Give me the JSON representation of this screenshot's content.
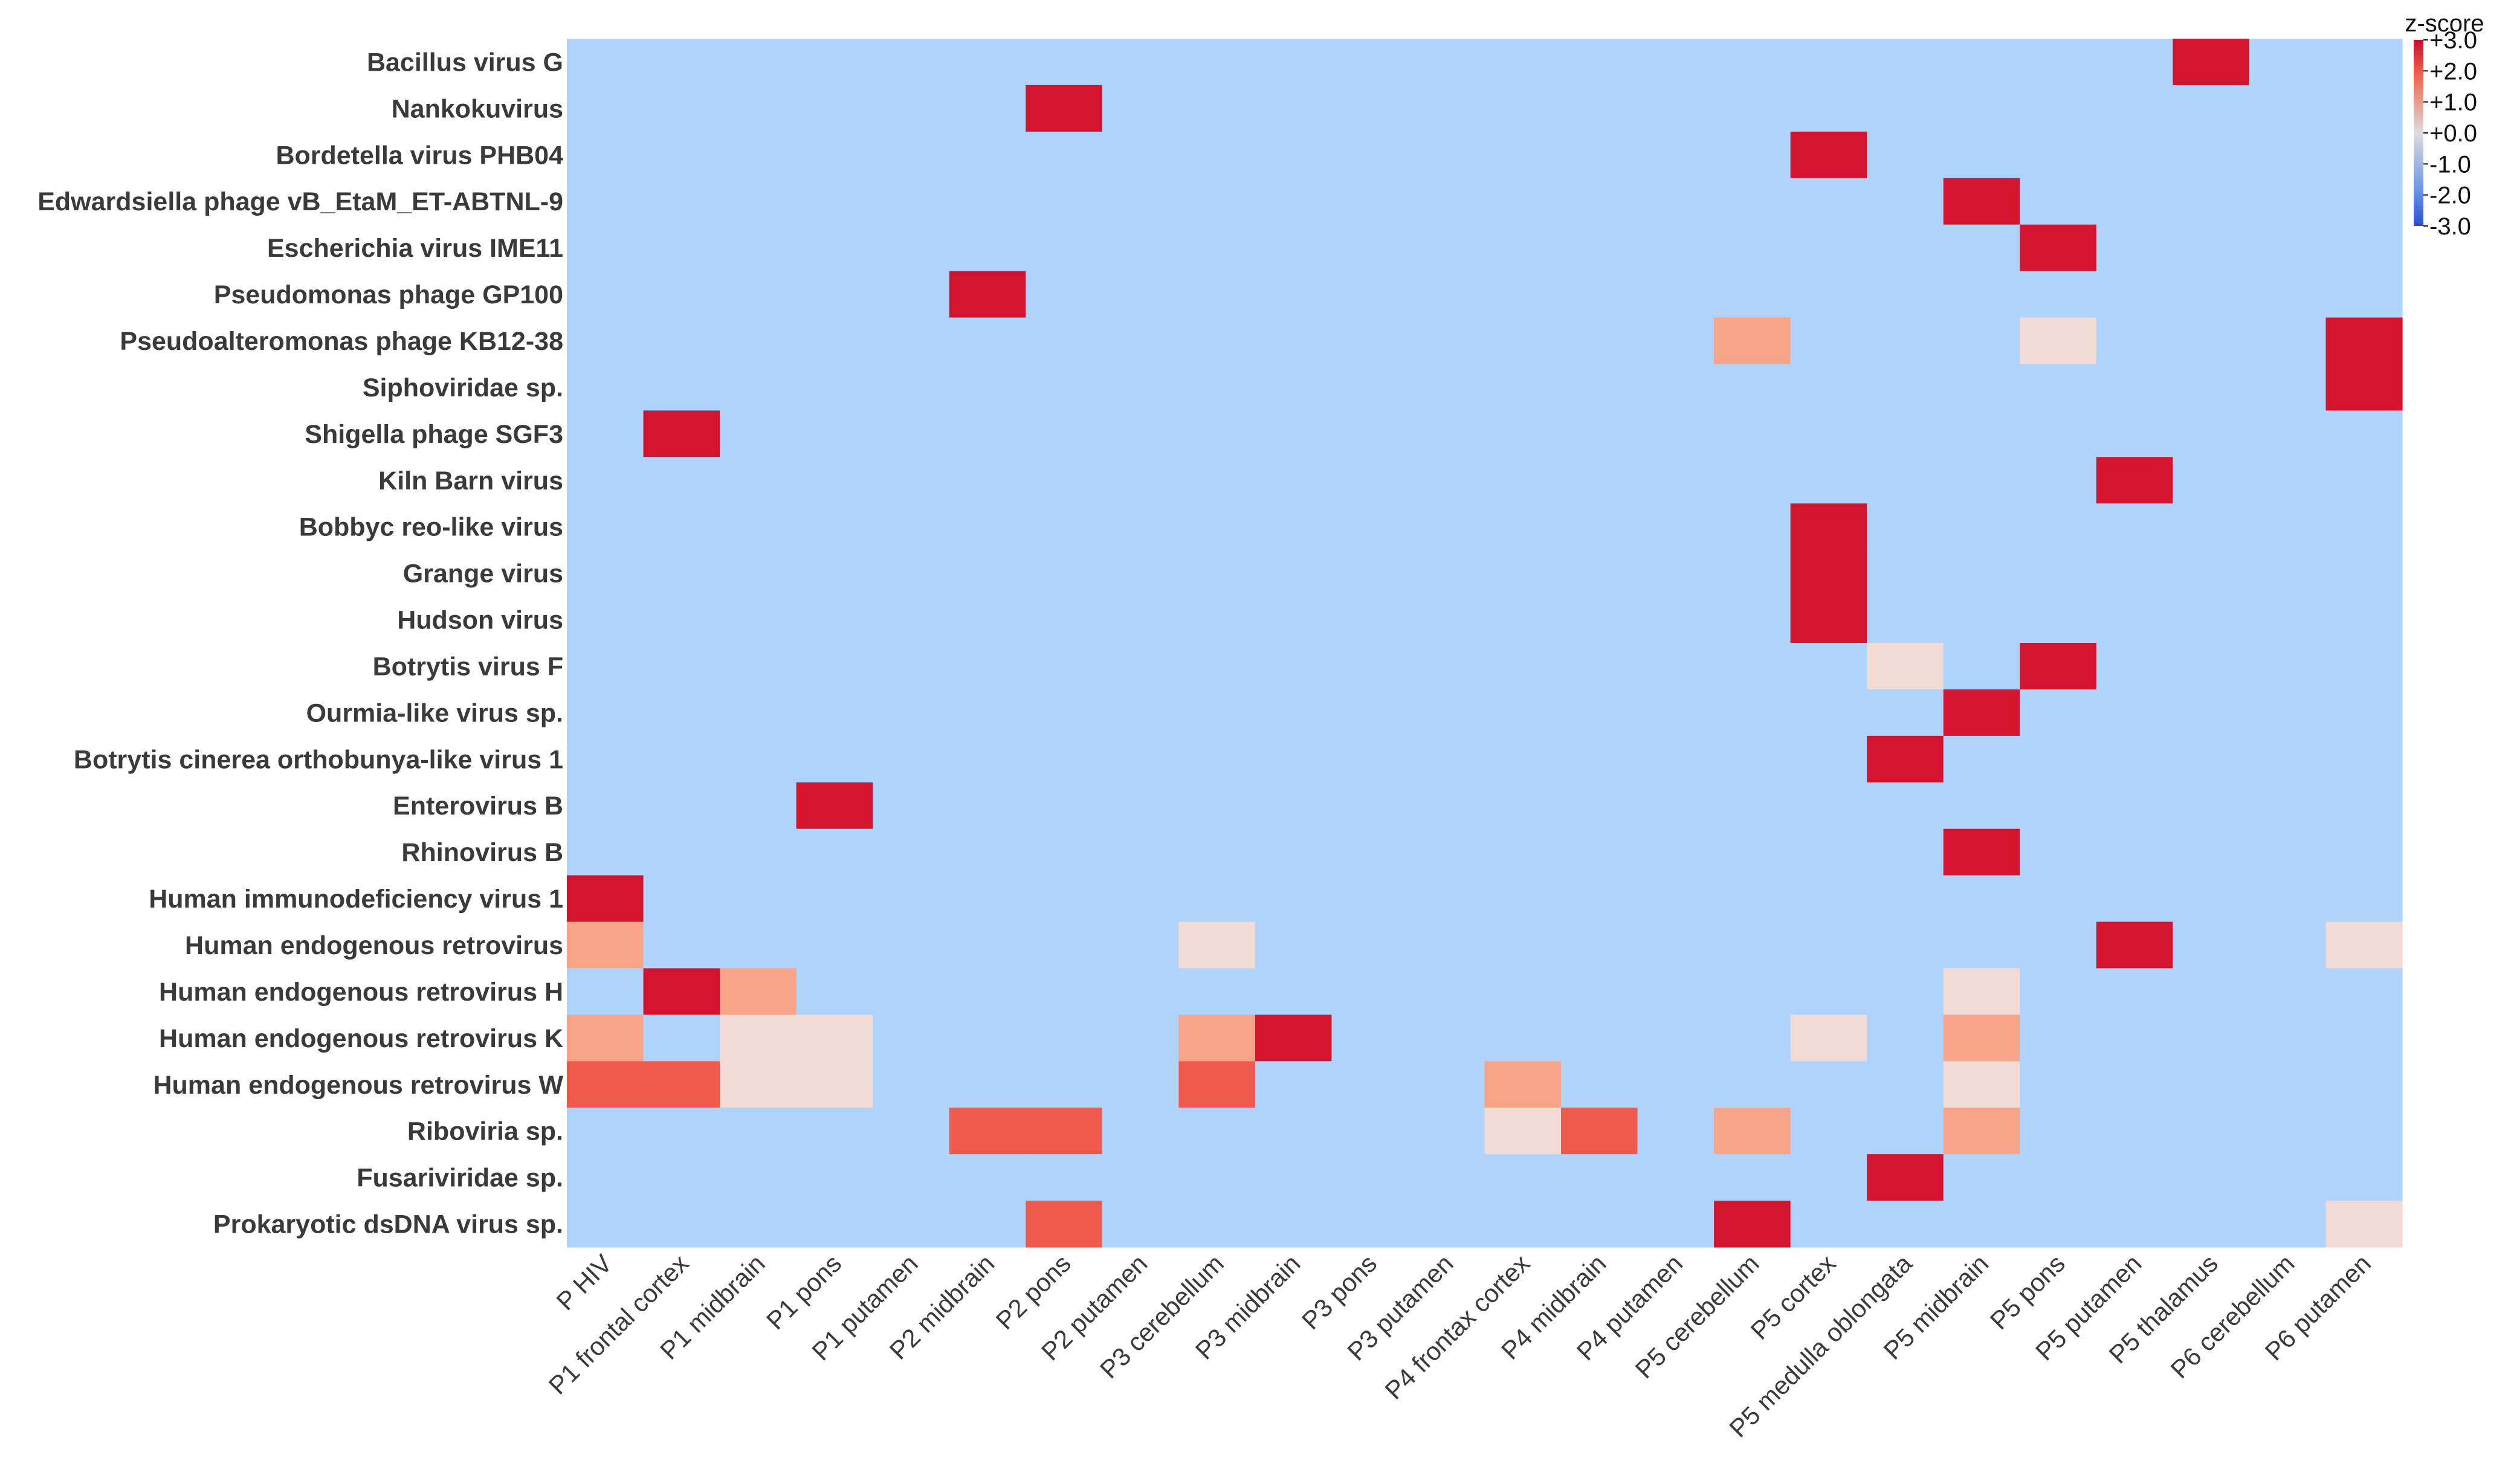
{
  "chart_data": {
    "type": "heatmap",
    "title": "",
    "xlabel": "",
    "ylabel": "",
    "colorbar": {
      "title": "z-score",
      "ticks": [
        "+3.0",
        "+2.0",
        "+1.0",
        "+0.0",
        "-1.0",
        "-2.0",
        "-3.0"
      ],
      "range": [
        -3,
        3
      ],
      "colors": {
        "high": "#c8102e",
        "mid": "#dcdcdc",
        "low": "#2850d0"
      }
    },
    "columns": [
      "P HIV",
      "P1 frontal cortex",
      "P1 midbrain",
      "P1 pons",
      "P1 putamen",
      "P2 midbrain",
      "P2 pons",
      "P2 putamen",
      "P3 cerebellum",
      "P3 midbrain",
      "P3 pons",
      "P3 putamen",
      "P4 frontax cortex",
      "P4 midbrain",
      "P4 putamen",
      "P5 cerebellum",
      "P5 cortex",
      "P5 medulla oblongata",
      "P5 midbrain",
      "P5 pons",
      "P5 putamen",
      "P5 thalamus",
      "P6 cerebellum",
      "P6 putamen"
    ],
    "rows": [
      "Bacillus virus G",
      "Nankokuvirus",
      "Bordetella virus PHB04",
      "Edwardsiella phage vB_EtaM_ET-ABTNL-9",
      "Escherichia virus IME11",
      "Pseudomonas phage GP100",
      "Pseudoalteromonas phage KB12-38",
      "Siphoviridae sp.",
      "Shigella phage SGF3",
      "Kiln Barn virus",
      "Bobbyc reo-like virus",
      "Grange virus",
      "Hudson virus",
      "Botrytis virus F",
      "Ourmia-like virus sp.",
      "Botrytis cinerea orthobunya-like virus 1",
      "Enterovirus B",
      "Rhinovirus B",
      "Human immunodeficiency virus 1",
      "Human endogenous retrovirus",
      "Human endogenous retrovirus H",
      "Human endogenous retrovirus K",
      "Human endogenous retrovirus W",
      "Riboviria sp.",
      "Fusariviridae sp.",
      "Prokaryotic dsDNA virus sp."
    ],
    "background_value": -1.0,
    "cells": [
      {
        "row": 0,
        "col": 21,
        "z": 3.0
      },
      {
        "row": 1,
        "col": 6,
        "z": 3.0
      },
      {
        "row": 2,
        "col": 16,
        "z": 3.0
      },
      {
        "row": 3,
        "col": 18,
        "z": 3.0
      },
      {
        "row": 4,
        "col": 19,
        "z": 3.0
      },
      {
        "row": 5,
        "col": 5,
        "z": 3.0
      },
      {
        "row": 6,
        "col": 15,
        "z": 1.2
      },
      {
        "row": 6,
        "col": 19,
        "z": 0.3
      },
      {
        "row": 6,
        "col": 23,
        "z": 3.0
      },
      {
        "row": 7,
        "col": 23,
        "z": 3.0
      },
      {
        "row": 8,
        "col": 1,
        "z": 3.0
      },
      {
        "row": 9,
        "col": 20,
        "z": 3.0
      },
      {
        "row": 10,
        "col": 16,
        "z": 3.0
      },
      {
        "row": 11,
        "col": 16,
        "z": 3.0
      },
      {
        "row": 12,
        "col": 16,
        "z": 3.0
      },
      {
        "row": 13,
        "col": 17,
        "z": 0.3
      },
      {
        "row": 13,
        "col": 19,
        "z": 3.0
      },
      {
        "row": 14,
        "col": 18,
        "z": 3.0
      },
      {
        "row": 15,
        "col": 17,
        "z": 3.0
      },
      {
        "row": 16,
        "col": 3,
        "z": 3.0
      },
      {
        "row": 17,
        "col": 18,
        "z": 3.0
      },
      {
        "row": 18,
        "col": 0,
        "z": 3.0
      },
      {
        "row": 19,
        "col": 0,
        "z": 1.2
      },
      {
        "row": 19,
        "col": 8,
        "z": 0.3
      },
      {
        "row": 19,
        "col": 20,
        "z": 3.0
      },
      {
        "row": 19,
        "col": 23,
        "z": 0.3
      },
      {
        "row": 20,
        "col": 1,
        "z": 3.0
      },
      {
        "row": 20,
        "col": 2,
        "z": 1.2
      },
      {
        "row": 20,
        "col": 18,
        "z": 0.3
      },
      {
        "row": 21,
        "col": 0,
        "z": 1.2
      },
      {
        "row": 21,
        "col": 2,
        "z": 0.3
      },
      {
        "row": 21,
        "col": 3,
        "z": 0.3
      },
      {
        "row": 21,
        "col": 8,
        "z": 1.2
      },
      {
        "row": 21,
        "col": 9,
        "z": 3.0
      },
      {
        "row": 21,
        "col": 16,
        "z": 0.3
      },
      {
        "row": 21,
        "col": 18,
        "z": 1.2
      },
      {
        "row": 22,
        "col": 0,
        "z": 2.0
      },
      {
        "row": 22,
        "col": 1,
        "z": 2.0
      },
      {
        "row": 22,
        "col": 2,
        "z": 0.3
      },
      {
        "row": 22,
        "col": 3,
        "z": 0.3
      },
      {
        "row": 22,
        "col": 8,
        "z": 2.0
      },
      {
        "row": 22,
        "col": 12,
        "z": 1.2
      },
      {
        "row": 22,
        "col": 18,
        "z": 0.3
      },
      {
        "row": 23,
        "col": 5,
        "z": 2.0
      },
      {
        "row": 23,
        "col": 6,
        "z": 2.0
      },
      {
        "row": 23,
        "col": 12,
        "z": 0.3
      },
      {
        "row": 23,
        "col": 13,
        "z": 2.0
      },
      {
        "row": 23,
        "col": 15,
        "z": 1.2
      },
      {
        "row": 23,
        "col": 18,
        "z": 1.2
      },
      {
        "row": 24,
        "col": 17,
        "z": 3.0
      },
      {
        "row": 25,
        "col": 6,
        "z": 2.0
      },
      {
        "row": 25,
        "col": 15,
        "z": 3.0
      },
      {
        "row": 25,
        "col": 23,
        "z": 0.3
      }
    ]
  }
}
